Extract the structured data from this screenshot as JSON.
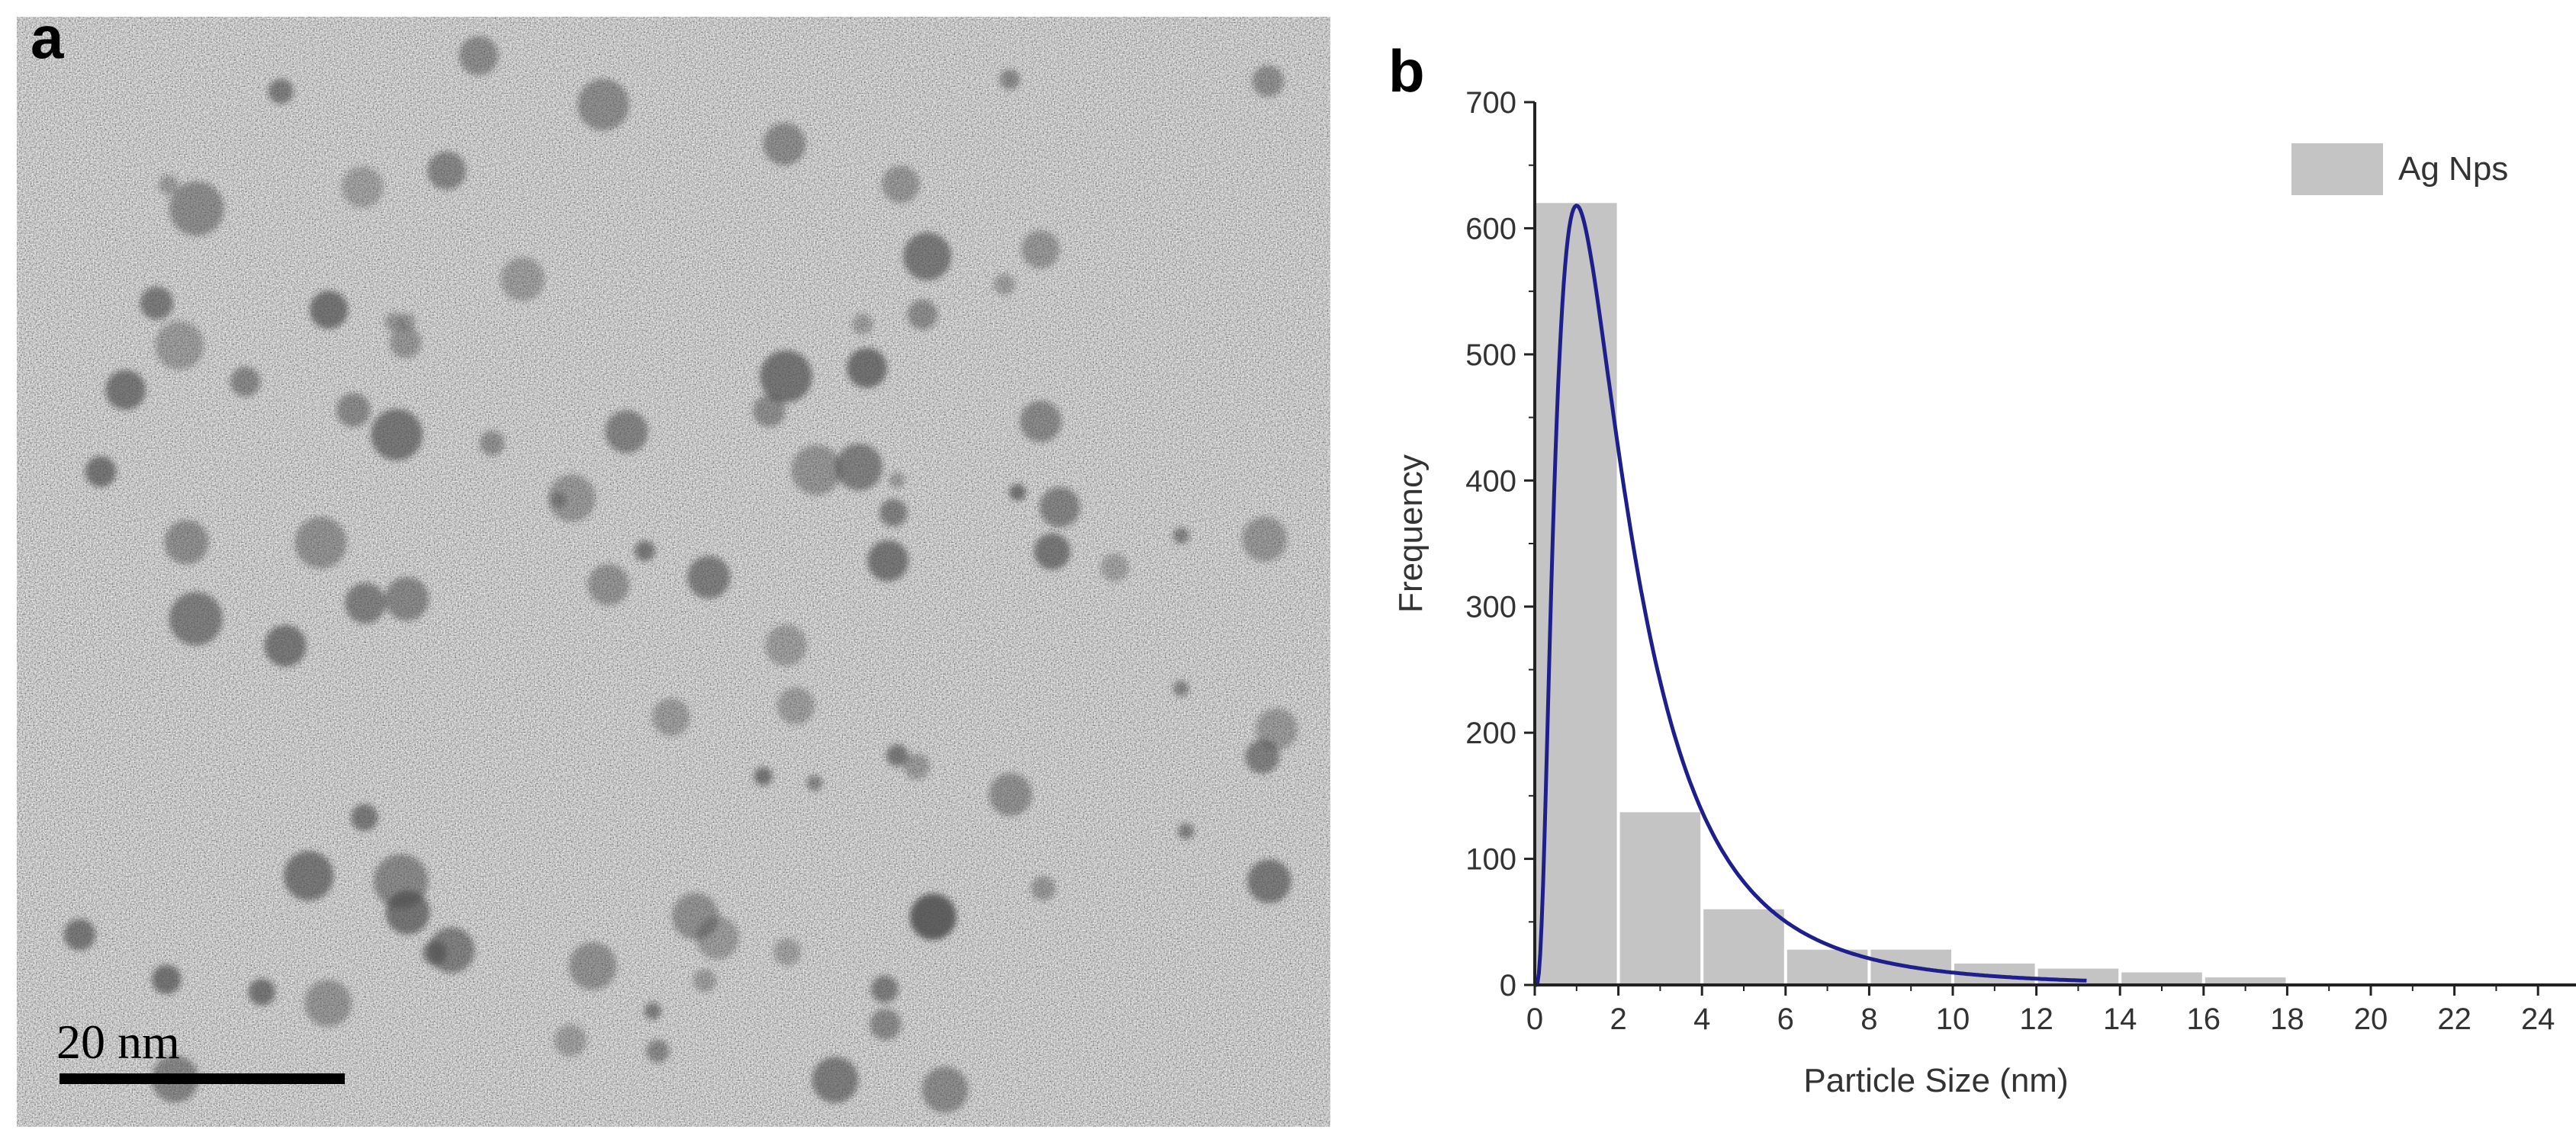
{
  "panel_a": {
    "label": "a",
    "scale_bar_label": "20 nm"
  },
  "panel_b": {
    "label": "b"
  },
  "chart_data": {
    "type": "bar",
    "title": "",
    "xlabel": "Particle Size (nm)",
    "ylabel": "Frequency",
    "xlim": [
      0,
      25
    ],
    "ylim": [
      0,
      700
    ],
    "x_ticks": [
      0,
      2,
      4,
      6,
      8,
      10,
      12,
      14,
      16,
      18,
      20,
      22,
      24
    ],
    "y_ticks": [
      0,
      100,
      200,
      300,
      400,
      500,
      600,
      700
    ],
    "bins": [
      {
        "from": 0,
        "to": 2,
        "value": 620
      },
      {
        "from": 2,
        "to": 4,
        "value": 137
      },
      {
        "from": 4,
        "to": 6,
        "value": 60
      },
      {
        "from": 6,
        "to": 8,
        "value": 28
      },
      {
        "from": 8,
        "to": 10,
        "value": 28
      },
      {
        "from": 10,
        "to": 12,
        "value": 17
      },
      {
        "from": 12,
        "to": 14,
        "value": 13
      },
      {
        "from": 14,
        "to": 16,
        "value": 10
      },
      {
        "from": 16,
        "to": 18,
        "value": 6
      }
    ],
    "series": [
      {
        "name": "Ag Nps",
        "kind": "histogram",
        "color": "#c4c4c4"
      }
    ],
    "fit_curve": {
      "kind": "lognormal",
      "color": "#1f1f8c",
      "peak_x": 1.0,
      "peak_y": 618,
      "x_range": [
        0,
        13.2
      ]
    },
    "legend": {
      "position": "top-right"
    },
    "grid": false
  }
}
